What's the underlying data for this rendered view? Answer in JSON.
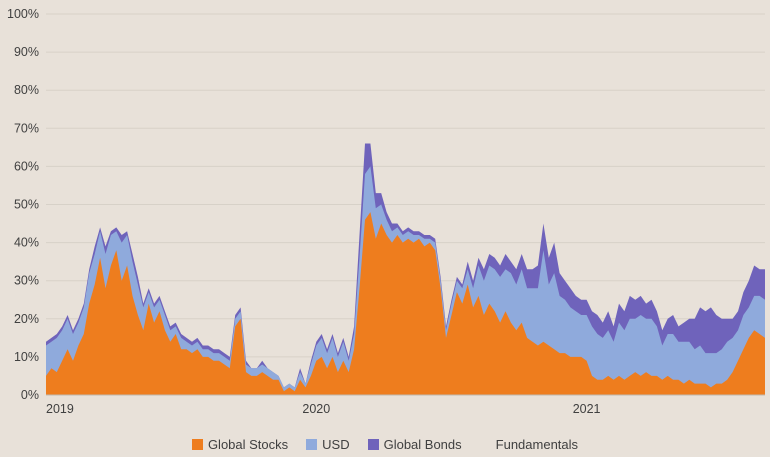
{
  "chart_data": {
    "type": "area",
    "stacked": true,
    "title": "",
    "xlabel": "",
    "ylabel": "",
    "x_start": 2019.0,
    "x_step": 0.02,
    "x_end": 2021.66,
    "y_range": [
      0,
      100
    ],
    "y_tick_labels": [
      "0%",
      "10%",
      "20%",
      "30%",
      "40%",
      "50%",
      "60%",
      "70%",
      "80%",
      "90%",
      "100%"
    ],
    "x_ticks": [
      {
        "label": "2019",
        "year": 2019
      },
      {
        "label": "2020",
        "year": 2020
      },
      {
        "label": "2021",
        "year": 2021
      }
    ],
    "grid": true,
    "legend_position": "bottom",
    "colors": {
      "background": "#e8e1d9",
      "gridline": "#d7d1c8",
      "axis_line": "#bfb9b0",
      "text": "#404040"
    },
    "series": [
      {
        "name": "Global Stocks",
        "color": "#ee7d1e",
        "values": [
          5,
          7,
          6,
          9,
          12,
          9,
          13,
          16,
          24,
          29,
          36,
          28,
          34,
          38,
          30,
          34,
          26,
          21,
          17,
          24,
          19,
          22,
          17,
          14,
          16,
          12,
          12,
          11,
          12,
          10,
          10,
          9,
          9,
          8,
          7,
          18,
          20,
          6,
          5,
          5,
          6,
          5,
          4,
          4,
          1,
          2,
          1,
          4,
          2,
          5,
          9,
          10,
          7,
          10,
          6,
          9,
          6,
          12,
          28,
          46,
          48,
          41,
          45,
          42,
          40,
          42,
          40,
          41,
          40,
          41,
          39,
          40,
          38,
          28,
          15,
          21,
          27,
          24,
          29,
          23,
          26,
          21,
          24,
          22,
          19,
          22,
          19,
          17,
          19,
          15,
          14,
          13,
          14,
          13,
          12,
          11,
          11,
          10,
          10,
          10,
          9,
          5,
          4,
          4,
          5,
          4,
          5,
          4,
          5,
          6,
          5,
          6,
          5,
          5,
          4,
          5,
          4,
          4,
          3,
          4,
          3,
          3,
          3,
          2,
          3,
          3,
          4,
          6,
          9,
          12,
          15,
          17,
          16,
          15
        ]
      },
      {
        "name": "USD",
        "color": "#8faadc",
        "values": [
          8,
          7,
          9,
          8,
          8,
          7,
          6,
          7,
          8,
          8,
          7,
          9,
          8,
          5,
          10,
          8,
          9,
          8,
          6,
          3,
          4,
          3,
          4,
          3,
          2,
          3,
          2,
          2,
          2,
          2,
          2,
          2,
          2,
          2,
          2,
          2,
          2,
          2,
          2,
          2,
          2,
          2,
          2,
          1,
          1,
          1,
          1,
          2,
          1,
          3,
          4,
          5,
          4,
          5,
          4,
          5,
          3,
          4,
          8,
          12,
          12,
          8,
          5,
          4,
          3,
          2,
          2,
          2,
          2,
          1,
          2,
          1,
          2,
          2,
          2,
          3,
          3,
          4,
          4,
          5,
          8,
          9,
          10,
          11,
          12,
          11,
          13,
          12,
          14,
          13,
          14,
          15,
          24,
          16,
          20,
          15,
          14,
          13,
          12,
          11,
          12,
          13,
          12,
          11,
          12,
          10,
          14,
          13,
          15,
          14,
          16,
          14,
          15,
          13,
          9,
          11,
          12,
          10,
          11,
          10,
          9,
          10,
          8,
          9,
          8,
          9,
          10,
          9,
          8,
          9,
          8,
          9,
          10,
          10
        ]
      },
      {
        "name": "Global Bonds",
        "color": "#6f63bb",
        "values": [
          1,
          1,
          1,
          1,
          1,
          1,
          1,
          1,
          1,
          2,
          1,
          2,
          1,
          1,
          2,
          1,
          2,
          2,
          1,
          1,
          1,
          1,
          1,
          1,
          1,
          1,
          1,
          1,
          1,
          1,
          1,
          1,
          1,
          1,
          1,
          1,
          1,
          1,
          0,
          0,
          1,
          0,
          0,
          0,
          0,
          0,
          0,
          1,
          0,
          1,
          1,
          1,
          1,
          1,
          1,
          1,
          1,
          2,
          6,
          8,
          6,
          4,
          3,
          2,
          2,
          1,
          1,
          1,
          1,
          1,
          1,
          1,
          1,
          1,
          1,
          1,
          1,
          1,
          2,
          2,
          2,
          3,
          3,
          3,
          3,
          4,
          3,
          4,
          4,
          5,
          5,
          6,
          7,
          7,
          8,
          6,
          5,
          5,
          4,
          4,
          4,
          4,
          5,
          4,
          5,
          4,
          5,
          5,
          6,
          5,
          5,
          4,
          5,
          4,
          4,
          4,
          5,
          4,
          5,
          6,
          8,
          10,
          11,
          12,
          10,
          8,
          6,
          5,
          5,
          6,
          7,
          8,
          7,
          8
        ]
      },
      {
        "name": "Fundamentals",
        "color": "#e8e1d9",
        "fill_remainder_to": 100
      }
    ]
  }
}
